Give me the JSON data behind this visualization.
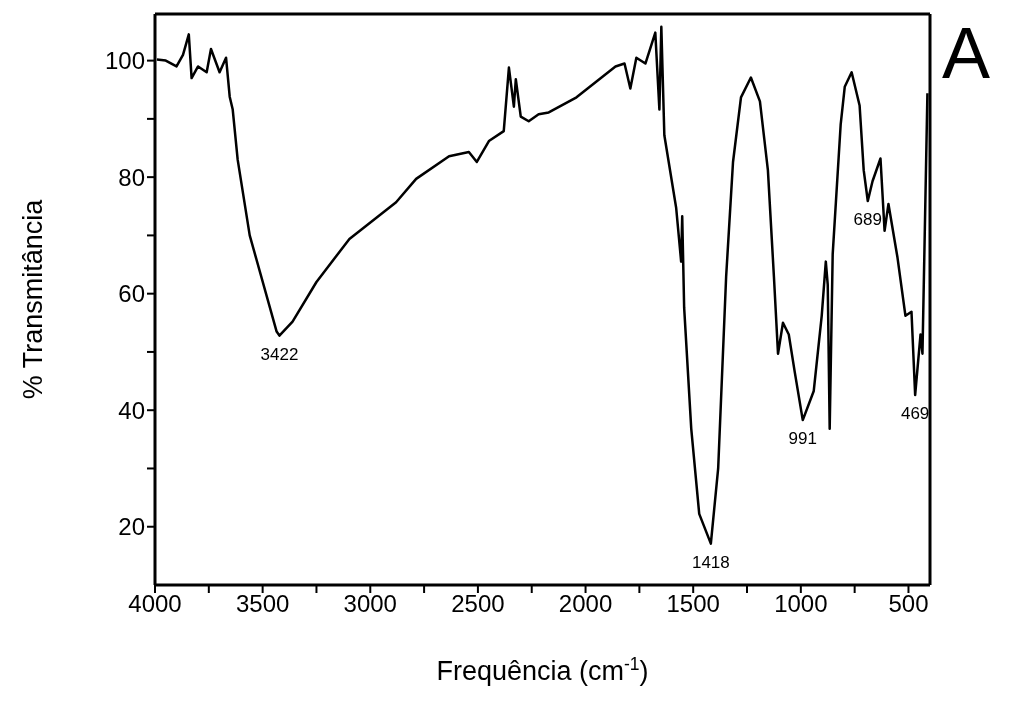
{
  "chart_data": {
    "type": "line",
    "xlabel": "Frequência (cm$^{-1}$)",
    "ylabel": "% Transmitância",
    "xlim": [
      4000,
      400
    ],
    "ylim": [
      10,
      108
    ],
    "xticks": [
      4000,
      {
        "value": 3750,
        "label": null
      },
      3500,
      {
        "value": 3250,
        "label": null
      },
      3000,
      {
        "value": 2750,
        "label": null
      },
      2500,
      {
        "value": 2250,
        "label": null
      },
      2000,
      {
        "value": 1750,
        "label": null
      },
      1500,
      {
        "value": 1250,
        "label": null
      },
      1000,
      {
        "value": 750,
        "label": null
      },
      500
    ],
    "yticks": [
      20,
      {
        "value": 30,
        "label": null
      },
      40,
      {
        "value": 50,
        "label": null
      },
      60,
      {
        "value": 70,
        "label": null
      },
      80,
      {
        "value": 90,
        "label": null
      },
      100
    ],
    "grid": false,
    "legend": false,
    "marker": "none",
    "line_style": "solid",
    "series": [
      {
        "color": "#000000",
        "x": [
          3991,
          3950,
          3900,
          3870,
          3843,
          3830,
          3800,
          3760,
          3740,
          3700,
          3670,
          3653,
          3639,
          3616,
          3560,
          3435,
          3422,
          3361,
          3250,
          3097,
          2880,
          2787,
          2634,
          2542,
          2505,
          2449,
          2380,
          2356,
          2333,
          2324,
          2301,
          2264,
          2218,
          2171,
          2042,
          1861,
          1819,
          1792,
          1764,
          1722,
          1676,
          1657,
          1648,
          1634,
          1579,
          1556,
          1551,
          1542,
          1509,
          1472,
          1418,
          1384,
          1347,
          1315,
          1278,
          1232,
          1190,
          1153,
          1125,
          1106,
          1083,
          1056,
          1028,
          991,
          940,
          903,
          884,
          875,
          866,
          852,
          815,
          796,
          764,
          727,
          708,
          689,
          667,
          630,
          611,
          593,
          551,
          514,
          486,
          469,
          444,
          435,
          412
        ],
        "values": [
          100.2,
          100,
          99,
          101,
          104.5,
          97,
          99,
          98,
          102,
          98,
          100.5,
          93.8,
          91.6,
          83,
          70,
          53.5,
          52.8,
          55.2,
          62,
          69.4,
          75.7,
          79.7,
          83.6,
          84.3,
          82.6,
          86.2,
          87.9,
          98.8,
          92.1,
          96.8,
          90.4,
          89.6,
          90.8,
          91.1,
          93.7,
          99,
          99.5,
          95.2,
          100.5,
          99.5,
          104.8,
          91.6,
          105.8,
          87.2,
          74.7,
          65.5,
          73.3,
          57.6,
          36.8,
          22.2,
          17.1,
          30,
          62.9,
          82.6,
          93.7,
          97.1,
          93,
          81.2,
          62.9,
          49.7,
          55,
          53,
          46.5,
          38.3,
          43.3,
          56.2,
          65.5,
          61.5,
          36.8,
          66.8,
          89,
          95.5,
          98,
          92.3,
          81.2,
          75.9,
          79.3,
          83.2,
          70.8,
          75.4,
          66.2,
          56.2,
          56.9,
          42.6,
          53,
          49.7,
          94.4
        ]
      }
    ],
    "annotations": [
      {
        "text": "3422",
        "x": 3422,
        "y": 52.8
      },
      {
        "text": "1418",
        "x": 1418,
        "y": 17.1
      },
      {
        "text": "991",
        "x": 991,
        "y": 38.3
      },
      {
        "text": "689",
        "x": 689,
        "y": 75.9
      },
      {
        "text": "469",
        "x": 469,
        "y": 42.6
      },
      "A"
    ]
  }
}
